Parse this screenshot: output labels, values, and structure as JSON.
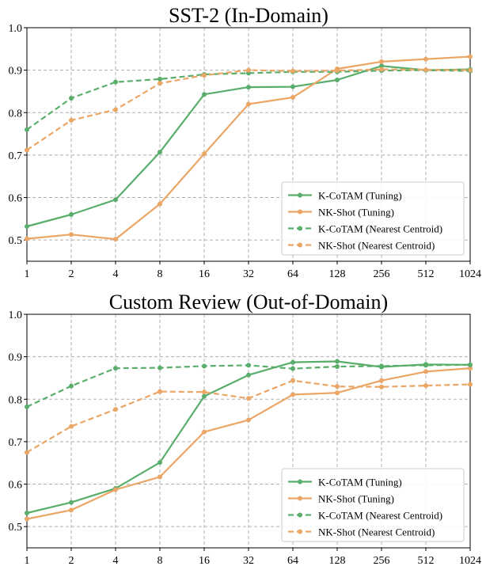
{
  "chart_data": [
    {
      "type": "line",
      "title": "SST-2 (In-Domain)",
      "xlabel": "",
      "ylabel": "",
      "x": [
        "1",
        "2",
        "4",
        "8",
        "16",
        "32",
        "64",
        "128",
        "256",
        "512",
        "1024"
      ],
      "ylim": [
        0.45,
        1.0
      ],
      "yticks": [
        "0.5",
        "0.6",
        "0.7",
        "0.8",
        "0.9",
        "1.0"
      ],
      "grid": true,
      "legend_position": "lower-right",
      "series": [
        {
          "name": "K-CoTAM (Tuning)",
          "color": "#5aae6b",
          "style": "solid",
          "values": [
            0.532,
            0.56,
            0.595,
            0.707,
            0.843,
            0.86,
            0.861,
            0.877,
            0.91,
            0.9,
            0.902
          ]
        },
        {
          "name": "NK-Shot (Tuning)",
          "color": "#eba565",
          "style": "solid",
          "values": [
            0.503,
            0.513,
            0.502,
            0.585,
            0.703,
            0.82,
            0.836,
            0.903,
            0.92,
            0.926,
            0.932
          ]
        },
        {
          "name": "K-CoTAM (Nearest Centroid)",
          "color": "#5aae6b",
          "style": "dashed",
          "values": [
            0.76,
            0.834,
            0.872,
            0.879,
            0.89,
            0.893,
            0.896,
            0.896,
            0.899,
            0.9,
            0.898
          ]
        },
        {
          "name": "NK-Shot (Nearest Centroid)",
          "color": "#eba565",
          "style": "dashed",
          "values": [
            0.712,
            0.782,
            0.807,
            0.869,
            0.888,
            0.9,
            0.898,
            0.899,
            0.902,
            0.901,
            0.9
          ]
        }
      ]
    },
    {
      "type": "line",
      "title": "Custom Review (Out-of-Domain)",
      "xlabel": "",
      "ylabel": "",
      "x": [
        "1",
        "2",
        "4",
        "8",
        "16",
        "32",
        "64",
        "128",
        "256",
        "512",
        "1024"
      ],
      "ylim": [
        0.45,
        1.0
      ],
      "yticks": [
        "0.5",
        "0.6",
        "0.7",
        "0.8",
        "0.9",
        "1.0"
      ],
      "grid": true,
      "legend_position": "lower-right",
      "series": [
        {
          "name": "K-CoTAM (Tuning)",
          "color": "#5aae6b",
          "style": "solid",
          "values": [
            0.532,
            0.557,
            0.59,
            0.651,
            0.807,
            0.857,
            0.887,
            0.889,
            0.876,
            0.882,
            0.881
          ]
        },
        {
          "name": "NK-Shot (Tuning)",
          "color": "#eba565",
          "style": "solid",
          "values": [
            0.518,
            0.539,
            0.587,
            0.617,
            0.723,
            0.751,
            0.811,
            0.815,
            0.844,
            0.865,
            0.873
          ]
        },
        {
          "name": "K-CoTAM (Nearest Centroid)",
          "color": "#5aae6b",
          "style": "dashed",
          "values": [
            0.782,
            0.831,
            0.873,
            0.874,
            0.878,
            0.88,
            0.872,
            0.877,
            0.878,
            0.88,
            0.881
          ]
        },
        {
          "name": "NK-Shot (Nearest Centroid)",
          "color": "#eba565",
          "style": "dashed",
          "values": [
            0.675,
            0.736,
            0.776,
            0.818,
            0.817,
            0.802,
            0.844,
            0.83,
            0.829,
            0.832,
            0.835
          ]
        }
      ]
    }
  ]
}
